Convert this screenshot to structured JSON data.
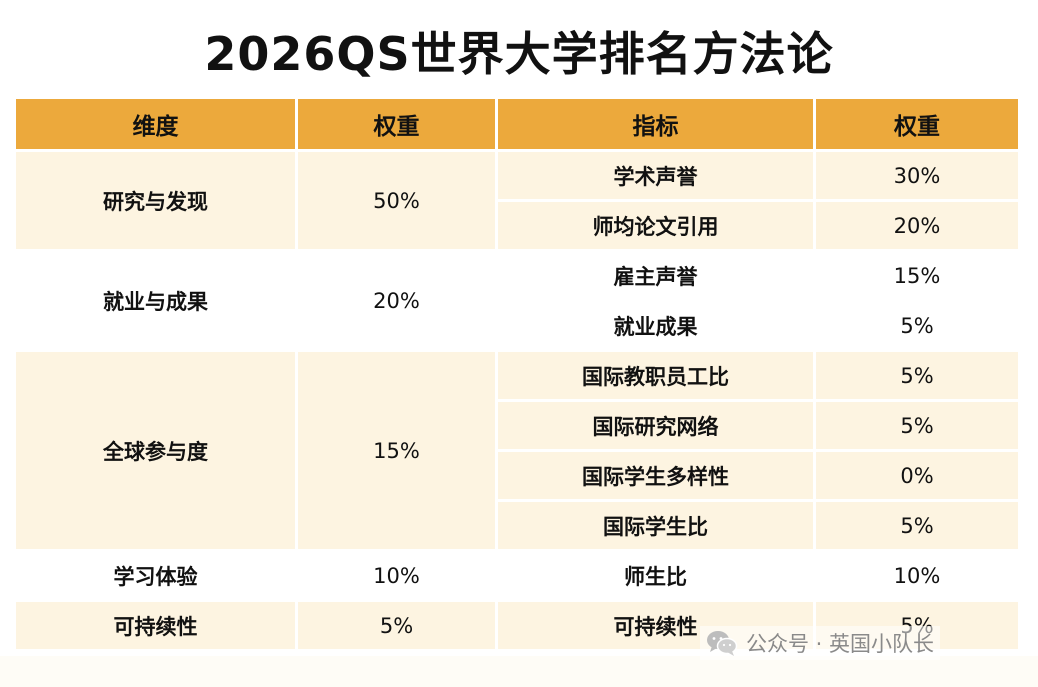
{
  "title": "2026QS世界大学排名方法论",
  "table": {
    "headers": [
      "维度",
      "权重",
      "指标",
      "权重"
    ],
    "groups": [
      {
        "dimension": "研究与发现",
        "weight": "50%",
        "indicators": [
          {
            "name": "学术声誉",
            "weight": "30%"
          },
          {
            "name": "师均论文引用",
            "weight": "20%"
          }
        ]
      },
      {
        "dimension": "就业与成果",
        "weight": "20%",
        "indicators": [
          {
            "name": "雇主声誉",
            "weight": "15%"
          },
          {
            "name": "就业成果",
            "weight": "5%"
          }
        ]
      },
      {
        "dimension": "全球参与度",
        "weight": "15%",
        "indicators": [
          {
            "name": "国际教职员工比",
            "weight": "5%"
          },
          {
            "name": "国际研究网络",
            "weight": "5%"
          },
          {
            "name": "国际学生多样性",
            "weight": "0%"
          },
          {
            "name": "国际学生比",
            "weight": "5%"
          }
        ]
      },
      {
        "dimension": "学习体验",
        "weight": "10%",
        "indicators": [
          {
            "name": "师生比",
            "weight": "10%"
          }
        ]
      },
      {
        "dimension": "可持续性",
        "weight": "5%",
        "indicators": [
          {
            "name": "可持续性",
            "weight": "5%"
          }
        ]
      }
    ]
  },
  "watermark": {
    "text": "公众号 · 英国小队长",
    "icon": "wechat-icon"
  },
  "colors": {
    "header": "#ECA93C",
    "row_tint": "#FDF4E1",
    "row_plain": "#FFFFFF"
  }
}
